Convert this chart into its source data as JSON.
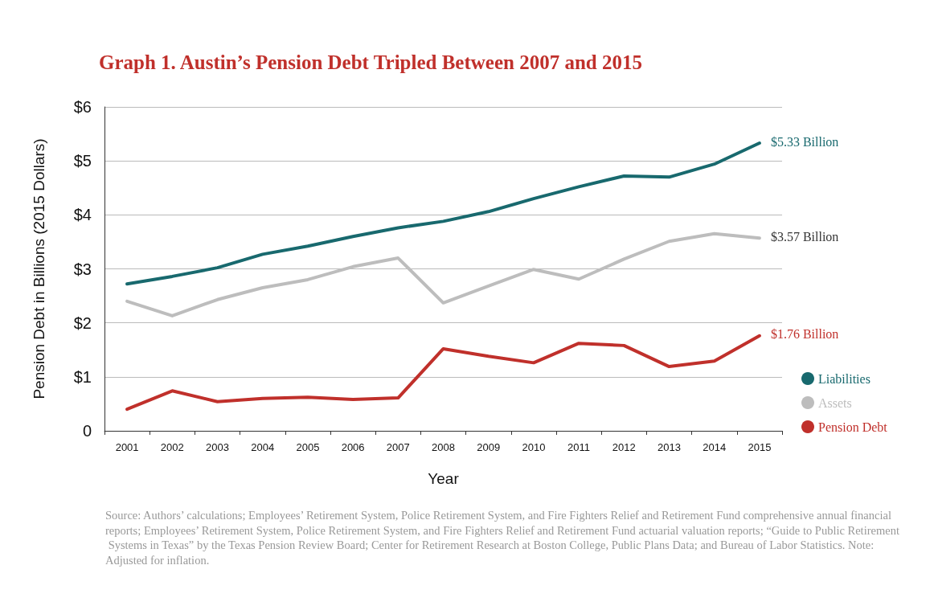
{
  "chart_data": {
    "type": "line",
    "title": "Graph 1. Austin’s Pension Debt Tripled Between 2007 and 2015",
    "xlabel": "Year",
    "ylabel": "Pension Debt in Billions (2015 Dollars)",
    "categories": [
      "2001",
      "2002",
      "2003",
      "2004",
      "2005",
      "2006",
      "2007",
      "2008",
      "2009",
      "2010",
      "2011",
      "2012",
      "2013",
      "2014",
      "2015"
    ],
    "series": [
      {
        "name": "Liabilities",
        "color": "#18696e",
        "values": [
          2.72,
          2.86,
          3.02,
          3.27,
          3.42,
          3.6,
          3.76,
          3.88,
          4.06,
          4.3,
          4.52,
          4.72,
          4.7,
          4.94,
          5.33
        ]
      },
      {
        "name": "Assets",
        "color": "#bdbdbd",
        "values": [
          2.4,
          2.13,
          2.43,
          2.65,
          2.8,
          3.04,
          3.2,
          2.37,
          2.68,
          2.99,
          2.81,
          3.18,
          3.51,
          3.65,
          3.57
        ]
      },
      {
        "name": "Pension Debt",
        "color": "#c0302b",
        "values": [
          0.4,
          0.74,
          0.54,
          0.6,
          0.62,
          0.58,
          0.61,
          1.52,
          1.38,
          1.26,
          1.62,
          1.58,
          1.19,
          1.29,
          1.76
        ]
      }
    ],
    "ylim": [
      0,
      6
    ],
    "yticks": [
      {
        "value": 0,
        "label": "0"
      },
      {
        "value": 1,
        "label": "$1"
      },
      {
        "value": 2,
        "label": "$2"
      },
      {
        "value": 3,
        "label": "$3"
      },
      {
        "value": 4,
        "label": "$4"
      },
      {
        "value": 5,
        "label": "$5"
      },
      {
        "value": 6,
        "label": "$6"
      }
    ],
    "annotations": [
      {
        "text": "$5.33 Billion",
        "x": "2015",
        "y": 5.33
      },
      {
        "text": "$3.57 Billion",
        "x": "2015",
        "y": 3.57
      },
      {
        "text": "$1.76 Billion",
        "x": "2015",
        "y": 1.76
      },
      "Source: Authors’ calculations; Employees’ Retirement System, Police Retirement System, and Fire Fighters Relief and Retirement Fund comprehensive annual financial reports; Employees’ Retirement System, Police Retirement System, and Fire Fighters Relief and Retirement Fund actuarial valuation reports; “Guide to Public Retirement Systems in Texas” by the Texas Pension Review Board; Center for Retirement Research at Boston College, Public Plans Data; and Bureau of Labor Statistics. Note: Adjusted for inflation."
    ],
    "grid": "y",
    "legend": "bottom right",
    "marker": "none",
    "line_style": "solid"
  }
}
